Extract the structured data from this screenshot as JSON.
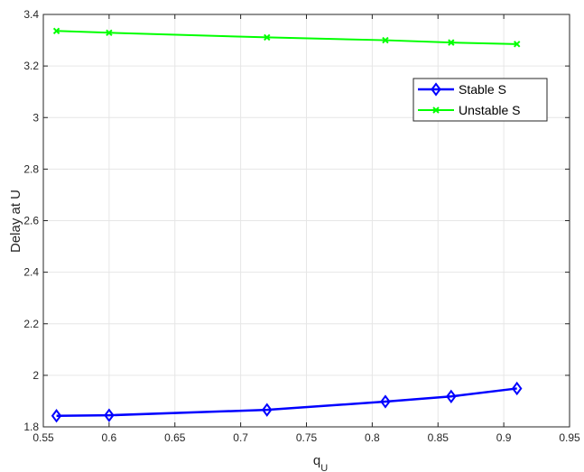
{
  "chart_data": {
    "type": "line",
    "title": "",
    "xlabel": "q",
    "xlabel_subscript": "U",
    "ylabel": "Delay at U",
    "xlim": [
      0.55,
      0.95
    ],
    "ylim": [
      1.8,
      3.4
    ],
    "xticks": [
      "0.55",
      "0.6",
      "0.65",
      "0.7",
      "0.75",
      "0.8",
      "0.85",
      "0.9",
      "0.95"
    ],
    "yticks": [
      "1.8",
      "2",
      "2.2",
      "2.4",
      "2.6",
      "2.8",
      "3",
      "3.2",
      "3.4"
    ],
    "grid": true,
    "legend_position": "upper-right",
    "series": [
      {
        "name": "Stable S",
        "color": "#0000ff",
        "marker": "diamond",
        "x": [
          0.56,
          0.6,
          0.72,
          0.81,
          0.86,
          0.91
        ],
        "y": [
          1.843,
          1.845,
          1.866,
          1.898,
          1.918,
          1.949
        ]
      },
      {
        "name": "Unstable S",
        "color": "#00ff00",
        "marker": "x",
        "x": [
          0.56,
          0.6,
          0.72,
          0.81,
          0.86,
          0.91
        ],
        "y": [
          3.336,
          3.329,
          3.311,
          3.3,
          3.291,
          3.285
        ]
      }
    ]
  }
}
